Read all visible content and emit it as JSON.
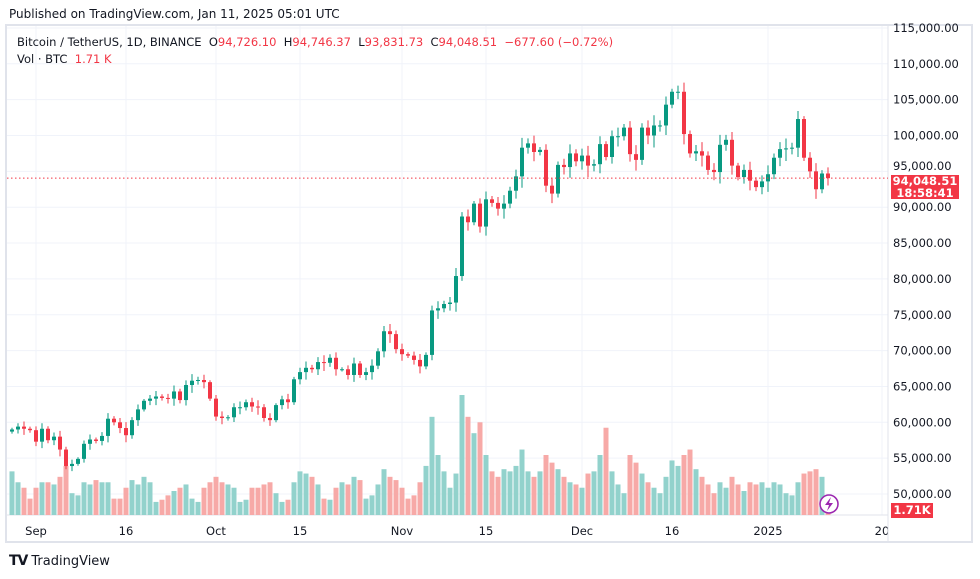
{
  "header": {
    "published": "Published on TradingView.com, Jan 11, 2025 05:01 UTC"
  },
  "legend": {
    "symbol": "Bitcoin / TetherUS, 1D, BINANCE",
    "o_label": "O",
    "o": "94,726.10",
    "h_label": "H",
    "h": "94,746.37",
    "l_label": "L",
    "l": "93,831.73",
    "c_label": "C",
    "c": "94,048.51",
    "change": "−677.60 (−0.72%)",
    "vol_label": "Vol · BTC",
    "vol": "1.71 K"
  },
  "price_tag": {
    "price": "94,048.51",
    "countdown": "18:58:41"
  },
  "volume_tag": "1.71K",
  "footer": {
    "brand": "TradingView"
  },
  "colors": {
    "up": "#089981",
    "down": "#f23645",
    "up_vol": "#92d2cc",
    "down_vol": "#f7a9a7"
  },
  "chart_data": {
    "type": "candlestick",
    "title": "Bitcoin / TetherUS, 1D, BINANCE",
    "first_date": "2024-08-28",
    "last_date": "2025-01-11",
    "x_tick_labels": [
      "Sep",
      "16",
      "Oct",
      "15",
      "Nov",
      "15",
      "Dec",
      "16",
      "2025",
      "20"
    ],
    "y_tick_labels": [
      "50,000.00",
      "55,000.00",
      "60,000.00",
      "65,000.00",
      "70,000.00",
      "75,000.00",
      "80,000.00",
      "85,000.00",
      "90,000.00",
      "95,000.00",
      "100,000.00",
      "105,000.00",
      "110,000.00",
      "115,000.00"
    ],
    "ylim": [
      50000,
      115000
    ],
    "grid": true,
    "current_price": 94048.51,
    "close": [
      59000,
      59400,
      59100,
      58900,
      57300,
      59100,
      57500,
      58000,
      56200,
      53900,
      54200,
      54900,
      57000,
      57600,
      57400,
      58100,
      60500,
      60000,
      59200,
      58200,
      60300,
      61800,
      63000,
      63300,
      63600,
      63400,
      63300,
      64300,
      63100,
      65200,
      65800,
      65900,
      65600,
      63300,
      60800,
      60600,
      60700,
      62100,
      62100,
      62800,
      62200,
      62100,
      60600,
      60300,
      62400,
      63200,
      62800,
      66000,
      67000,
      67600,
      67400,
      68400,
      68300,
      69000,
      67400,
      67400,
      66600,
      68200,
      66600,
      67000,
      67900,
      69900,
      72700,
      72300,
      70200,
      69500,
      69300,
      68700,
      67800,
      69400,
      75600,
      75900,
      76500,
      76700,
      80400,
      88700,
      87900,
      90500,
      87300,
      91100,
      90600,
      89800,
      90500,
      92300,
      94300,
      98300,
      98900,
      97700,
      98000,
      93000,
      91900,
      95900,
      95600,
      97500,
      96400,
      97200,
      95800,
      96000,
      98800,
      97000,
      99900,
      99900,
      101100,
      97400,
      96600,
      101100,
      100000,
      101400,
      101400,
      104300,
      106100,
      106100,
      100200,
      97500,
      97800,
      97200,
      95200,
      94900,
      98700,
      99400,
      95800,
      94200,
      95200,
      93700,
      92800,
      93600,
      94600,
      96900,
      98100,
      98200,
      98300,
      102300,
      96900,
      95000,
      92500,
      94700,
      94048.51
    ],
    "volume_k": [
      40,
      30,
      25,
      15,
      25,
      30,
      30,
      28,
      35,
      45,
      20,
      18,
      30,
      28,
      32,
      30,
      30,
      15,
      15,
      25,
      32,
      28,
      35,
      30,
      12,
      14,
      18,
      22,
      25,
      28,
      15,
      12,
      25,
      30,
      35,
      30,
      28,
      25,
      12,
      14,
      25,
      25,
      28,
      30,
      20,
      12,
      14,
      30,
      40,
      38,
      35,
      28,
      15,
      14,
      25,
      30,
      28,
      35,
      32,
      15,
      18,
      28,
      42,
      35,
      32,
      25,
      15,
      18,
      30,
      45,
      90,
      55,
      40,
      25,
      38,
      110,
      90,
      75,
      85,
      55,
      40,
      35,
      42,
      40,
      45,
      60,
      40,
      35,
      40,
      55,
      48,
      42,
      35,
      30,
      28,
      25,
      38,
      40,
      55,
      80,
      40,
      28,
      20,
      55,
      48,
      38,
      30,
      25,
      20,
      35,
      50,
      45,
      55,
      60,
      42,
      35,
      28,
      20,
      30,
      25,
      35,
      28,
      22,
      30,
      28,
      30,
      25,
      30,
      28,
      20,
      18,
      30,
      38,
      40,
      42,
      35,
      8
    ]
  }
}
